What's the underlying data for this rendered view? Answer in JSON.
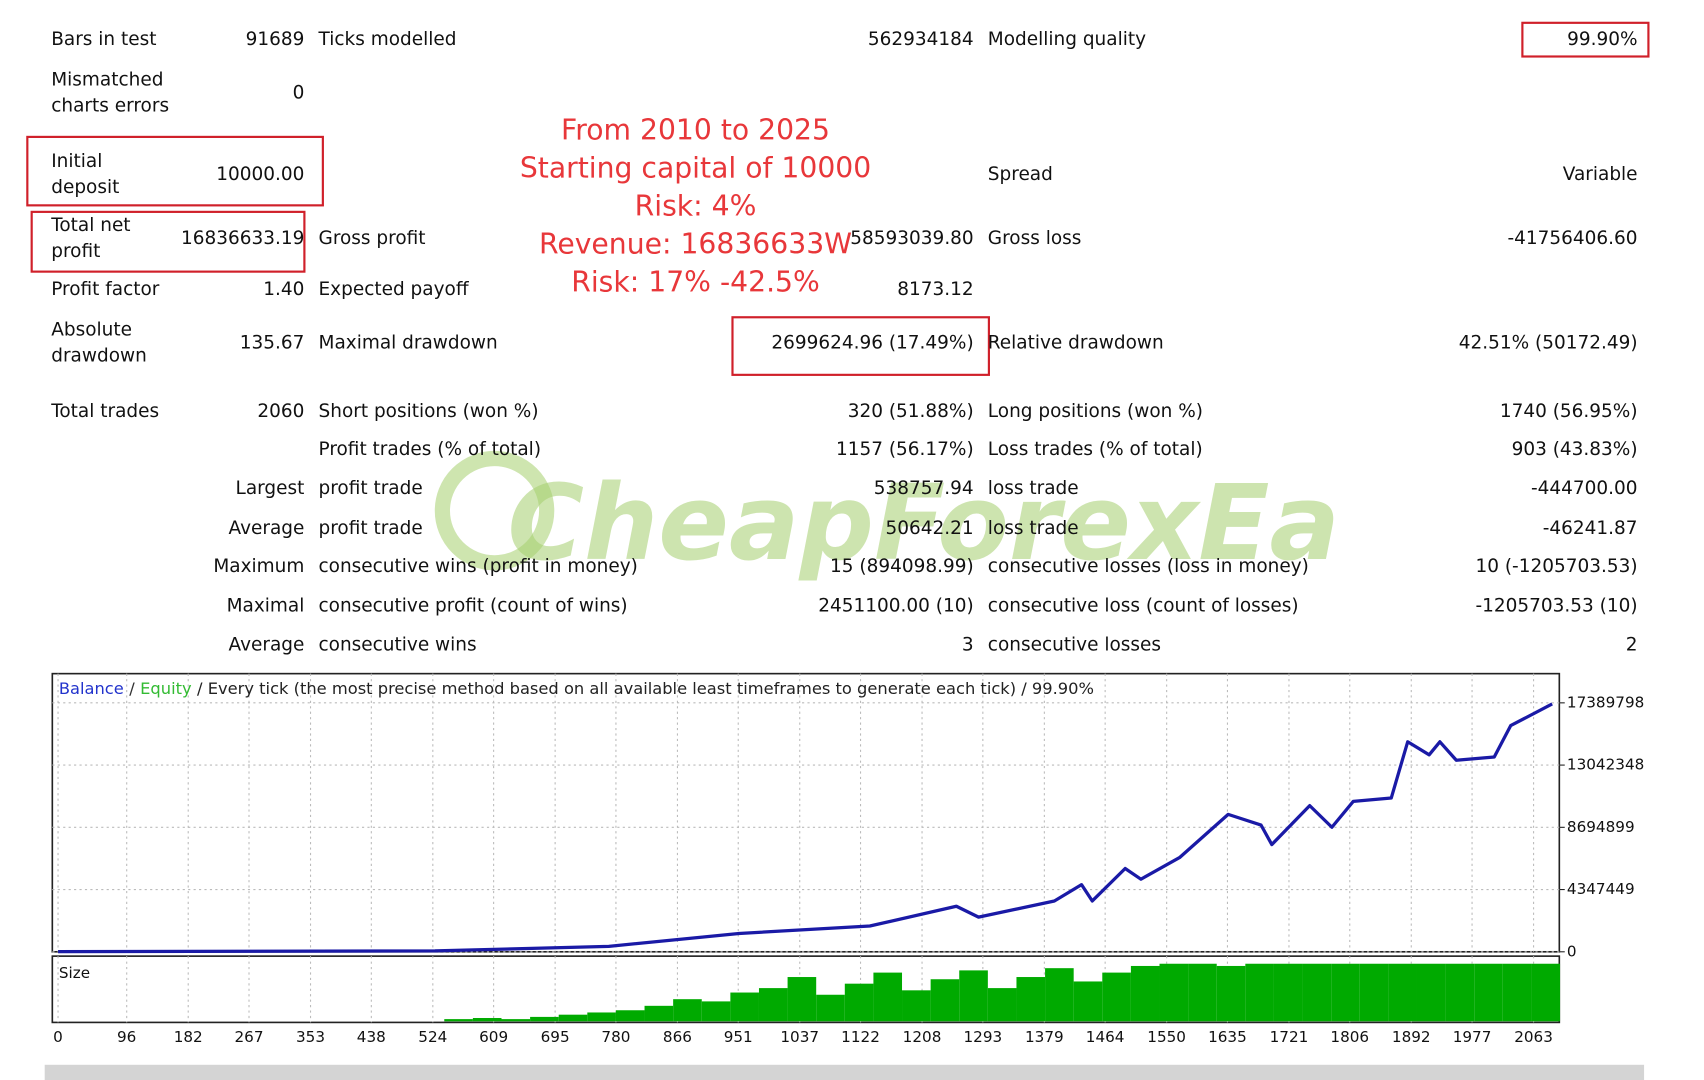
{
  "report": {
    "rows": [
      [
        "Bars in test",
        "91689",
        "Ticks modelled",
        "562934184",
        "Modelling quality",
        "99.90%"
      ],
      [
        [
          "Mismatched",
          "charts errors"
        ],
        "0",
        null,
        null,
        null,
        null
      ],
      [
        [
          "Initial",
          "deposit"
        ],
        "10000.00",
        null,
        null,
        "Spread",
        "Variable"
      ],
      [
        [
          "Total net",
          "profit"
        ],
        "16836633.19",
        "Gross profit",
        "58593039.80",
        "Gross loss",
        "-41756406.60"
      ],
      [
        "Profit factor",
        "1.40",
        "Expected payoff",
        "8173.12",
        null,
        null
      ],
      [
        [
          "Absolute",
          "drawdown"
        ],
        "135.67",
        "Maximal drawdown",
        "2699624.96 (17.49%)",
        "Relative drawdown",
        "42.51% (50172.49)"
      ],
      [
        "Total trades",
        "2060",
        "Short positions (won %)",
        "320 (51.88%)",
        "Long positions (won %)",
        "1740 (56.95%)"
      ],
      [
        null,
        null,
        "Profit trades (% of total)",
        "1157 (56.17%)",
        "Loss trades (% of total)",
        "903 (43.83%)"
      ],
      [
        null,
        "Largest",
        "profit trade",
        "538757.94",
        "loss trade",
        "-444700.00"
      ],
      [
        null,
        "Average",
        "profit trade",
        "50642.21",
        "loss trade",
        "-46241.87"
      ],
      [
        null,
        "Maximum",
        "consecutive wins (profit in money)",
        "15 (894098.99)",
        "consecutive losses (loss in money)",
        "10 (-1205703.53)"
      ],
      [
        null,
        "Maximal",
        "consecutive profit (count of wins)",
        "2451100.00 (10)",
        "consecutive loss (count of losses)",
        "-1205703.53 (10)"
      ],
      [
        null,
        "Average",
        "consecutive wins",
        "3",
        "consecutive losses",
        "2"
      ]
    ],
    "annotation": [
      "From 2010 to 2025",
      "Starting capital of 10000",
      "Risk:  4%",
      "Revenue: 16836633W",
      "Risk: 17% -42.5%"
    ],
    "watermark": "CheapForexEa"
  },
  "chart_data": [
    {
      "type": "line",
      "legend_items": [
        {
          "text": "Balance",
          "color": "#2233cc"
        },
        {
          "text": "/",
          "color": "#333333"
        },
        {
          "text": "Equity",
          "color": "#33bb33"
        },
        {
          "text": "/ Every tick (the most precise method based on all available least timeframes to generate each tick) / 99.90%",
          "color": "#222222"
        }
      ],
      "series": [
        {
          "color": "#1a1aa6",
          "x": [
            0,
            527,
            770,
            952,
            1135,
            1256,
            1287,
            1393,
            1431,
            1446,
            1492,
            1514,
            1568,
            1636,
            1682,
            1697,
            1750,
            1781,
            1811,
            1864,
            1887,
            1917,
            1932,
            1955,
            2008,
            2031,
            2089
          ],
          "values": [
            10000,
            60000,
            380000,
            1280000,
            1800000,
            3180000,
            2420000,
            3550000,
            4690000,
            3550000,
            5820000,
            5070000,
            6580000,
            9600000,
            8850000,
            7490000,
            10210000,
            8700000,
            10510000,
            10740000,
            14670000,
            13760000,
            14670000,
            13380000,
            13610000,
            15800000,
            17310000
          ]
        }
      ],
      "xlim": [
        -8,
        2099
      ],
      "ylim": [
        0,
        19430000
      ],
      "yticks": [
        0,
        4347449,
        8694899,
        13042348,
        17389798
      ],
      "grid": true
    },
    {
      "type": "bar",
      "title": "Size",
      "color": "#00aa00",
      "x": [
        560,
        600,
        640,
        680,
        720,
        760,
        800,
        840,
        880,
        920,
        960,
        1000,
        1040,
        1080,
        1120,
        1160,
        1200,
        1240,
        1280,
        1320,
        1360,
        1400,
        1440,
        1480,
        1520,
        1560,
        1600,
        1640,
        1680,
        1720,
        1760,
        1800,
        1840,
        1880,
        1920,
        1960,
        2000,
        2040,
        2080
      ],
      "values": [
        2,
        3,
        2,
        4,
        6,
        8,
        10,
        14,
        20,
        18,
        26,
        30,
        40,
        24,
        34,
        44,
        28,
        38,
        46,
        30,
        40,
        48,
        36,
        44,
        50,
        52,
        52,
        50,
        52,
        52,
        52,
        52,
        52,
        52,
        52,
        52,
        52,
        52,
        52
      ],
      "xlim": [
        -8,
        2099
      ],
      "xticks": [
        0,
        96,
        182,
        267,
        353,
        438,
        524,
        609,
        695,
        780,
        866,
        951,
        1037,
        1122,
        1208,
        1293,
        1379,
        1464,
        1550,
        1635,
        1721,
        1806,
        1892,
        1977,
        2063
      ],
      "grid": true
    }
  ]
}
